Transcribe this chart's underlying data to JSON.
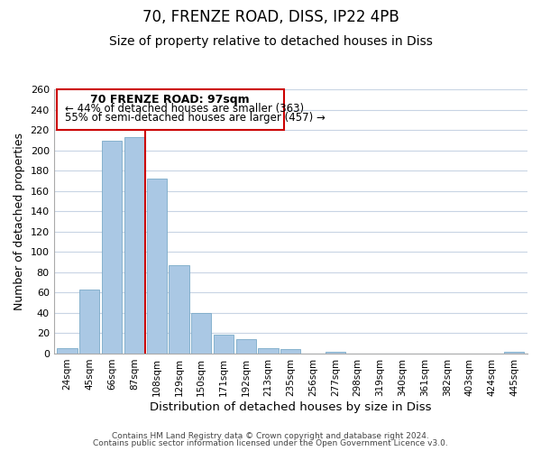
{
  "title": "70, FRENZE ROAD, DISS, IP22 4PB",
  "subtitle": "Size of property relative to detached houses in Diss",
  "xlabel": "Distribution of detached houses by size in Diss",
  "ylabel": "Number of detached properties",
  "bar_labels": [
    "24sqm",
    "45sqm",
    "66sqm",
    "87sqm",
    "108sqm",
    "129sqm",
    "150sqm",
    "171sqm",
    "192sqm",
    "213sqm",
    "235sqm",
    "256sqm",
    "277sqm",
    "298sqm",
    "319sqm",
    "340sqm",
    "361sqm",
    "382sqm",
    "403sqm",
    "424sqm",
    "445sqm"
  ],
  "bar_values": [
    5,
    63,
    210,
    213,
    172,
    87,
    40,
    19,
    14,
    5,
    4,
    0,
    2,
    0,
    0,
    0,
    0,
    0,
    0,
    0,
    2
  ],
  "bar_color": "#aac8e4",
  "bar_edge_color": "#7aaac8",
  "vline_x": 3.5,
  "vline_color": "#cc0000",
  "ylim": [
    0,
    260
  ],
  "yticks": [
    0,
    20,
    40,
    60,
    80,
    100,
    120,
    140,
    160,
    180,
    200,
    220,
    240,
    260
  ],
  "annotation_title": "70 FRENZE ROAD: 97sqm",
  "annotation_line1": "← 44% of detached houses are smaller (363)",
  "annotation_line2": "55% of semi-detached houses are larger (457) →",
  "annotation_box_color": "#ffffff",
  "annotation_box_edge": "#cc0000",
  "footer_line1": "Contains HM Land Registry data © Crown copyright and database right 2024.",
  "footer_line2": "Contains public sector information licensed under the Open Government Licence v3.0.",
  "background_color": "#ffffff",
  "grid_color": "#c8d4e4",
  "title_fontsize": 12,
  "subtitle_fontsize": 10
}
